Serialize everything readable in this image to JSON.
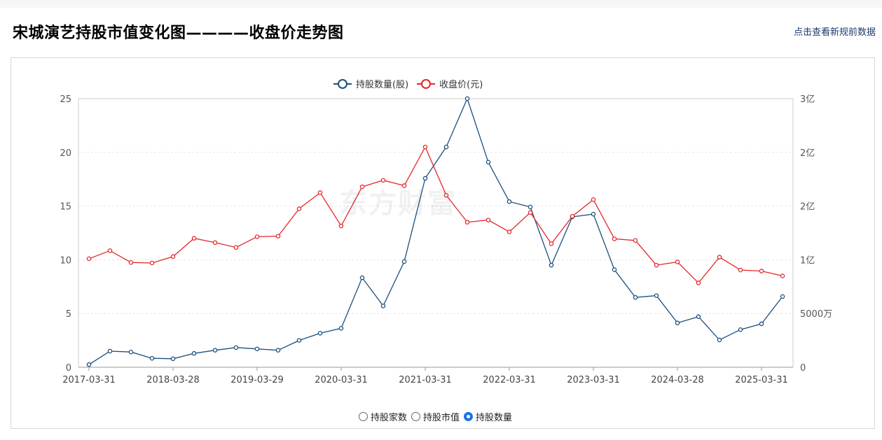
{
  "page": {
    "title": "宋城演艺持股市值变化图————收盘价走势图",
    "link_text": "点击查看新规前数据",
    "watermark": "东方财富"
  },
  "colors": {
    "shares": "#1b4f7e",
    "price": "#e5262a",
    "radio_selected": "#1a73e8"
  },
  "legend": [
    {
      "label": "持股数量(股)",
      "color": "#1b4f7e"
    },
    {
      "label": "收盘价(元)",
      "color": "#e5262a"
    }
  ],
  "radios": [
    {
      "label": "持股家数",
      "checked": false
    },
    {
      "label": "持股市值",
      "checked": false
    },
    {
      "label": "持股数量",
      "checked": true
    }
  ],
  "chart_data": {
    "type": "line",
    "legend_position": "top-center",
    "grid": true,
    "x_tick_labels": [
      "2017-03-31",
      "2018-03-28",
      "2019-03-29",
      "2020-03-31",
      "2021-03-31",
      "2022-03-31",
      "2023-03-31",
      "2024-03-28",
      "2025-03-31"
    ],
    "x_tick_indices": [
      0,
      4,
      8,
      12,
      16,
      20,
      24,
      28,
      32
    ],
    "num_points": 34,
    "y_left": {
      "min": 0,
      "max": 25,
      "ticks": [
        "0",
        "5",
        "10",
        "15",
        "20",
        "25"
      ]
    },
    "y_right": {
      "min": 0,
      "max": 300000000,
      "ticks": [
        "0",
        "5000万",
        "1亿",
        "2亿",
        "2亿",
        "3亿"
      ]
    },
    "series": [
      {
        "name": "持股数量(股)",
        "axis": "right",
        "values": [
          3000000,
          18000000,
          17000000,
          10000000,
          9500000,
          15500000,
          19000000,
          22000000,
          20500000,
          19000000,
          30000000,
          38000000,
          43500000,
          100000000,
          68500000,
          118000000,
          211000000,
          246000000,
          300000000,
          229000000,
          185000000,
          179000000,
          114000000,
          168000000,
          171000000,
          109000000,
          78000000,
          80000000,
          49500000,
          56500000,
          30500000,
          42000000,
          48500000,
          79000000
        ]
      },
      {
        "name": "收盘价(元)",
        "axis": "left",
        "values": [
          10.1,
          10.85,
          9.75,
          9.7,
          10.3,
          12.0,
          11.6,
          11.15,
          12.15,
          12.2,
          14.75,
          16.25,
          13.15,
          16.8,
          17.4,
          16.9,
          20.5,
          16.0,
          13.5,
          13.7,
          12.6,
          14.4,
          11.5,
          14.05,
          15.6,
          11.95,
          11.8,
          9.5,
          9.8,
          7.85,
          10.25,
          9.05,
          8.95,
          8.5
        ]
      }
    ]
  }
}
